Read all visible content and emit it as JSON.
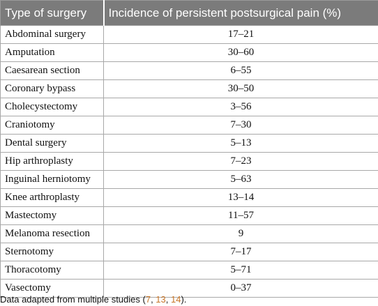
{
  "table": {
    "headers": [
      "Type of surgery",
      "Incidence of persistent postsurgical pain (%)"
    ],
    "rows": [
      [
        "Abdominal surgery",
        "17–21"
      ],
      [
        "Amputation",
        "30–60"
      ],
      [
        "Caesarean section",
        "6–55"
      ],
      [
        "Coronary bypass",
        "30–50"
      ],
      [
        "Cholecystectomy",
        "3–56"
      ],
      [
        "Craniotomy",
        "7–30"
      ],
      [
        "Dental surgery",
        "5–13"
      ],
      [
        "Hip arthroplasty",
        "7–23"
      ],
      [
        "Inguinal herniotomy",
        "5–63"
      ],
      [
        "Knee arthroplasty",
        "13–14"
      ],
      [
        "Mastectomy",
        "11–57"
      ],
      [
        "Melanoma resection",
        "9"
      ],
      [
        "Sternotomy",
        "7–17"
      ],
      [
        "Thoracotomy",
        "5–71"
      ],
      [
        "Vasectomy",
        "0–37"
      ]
    ]
  },
  "footnote": {
    "prefix": "Data adapted from multiple studies (",
    "refs": [
      "7",
      "13",
      "14"
    ],
    "suffix": ")."
  },
  "colors": {
    "header_bg": "#7b7b7b",
    "reference_link": "#c8772a"
  }
}
